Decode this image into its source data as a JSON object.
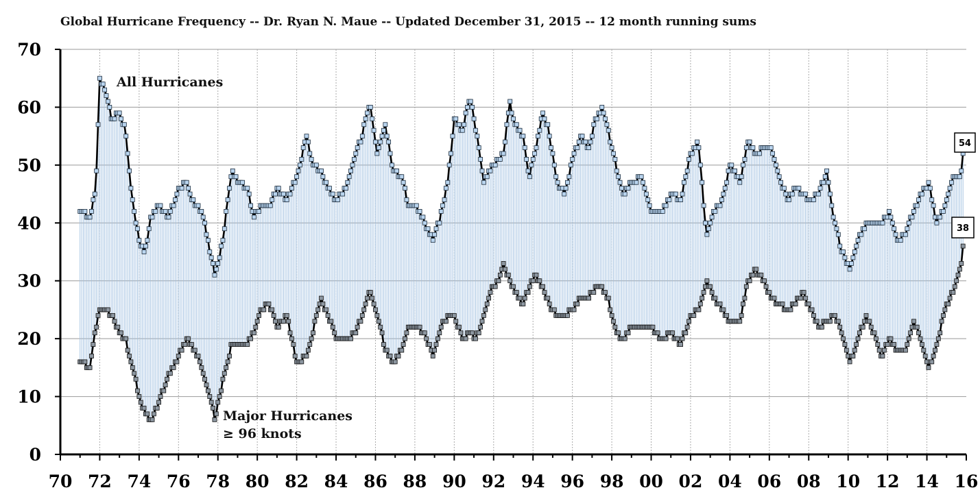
{
  "chart_data": {
    "type": "line",
    "title": "Global Hurricane Frequency -- Dr. Ryan N. Maue -- Updated December 31, 2015 -- 12 month running sums",
    "xlabel": "",
    "ylabel": "",
    "xlim": [
      1970,
      2016
    ],
    "ylim": [
      0,
      70
    ],
    "y_ticks": [
      "0",
      "10",
      "20",
      "30",
      "40",
      "50",
      "60",
      "70"
    ],
    "x_ticks": [
      "70",
      "72",
      "74",
      "76",
      "78",
      "80",
      "82",
      "84",
      "86",
      "88",
      "90",
      "92",
      "94",
      "96",
      "98",
      "00",
      "02",
      "04",
      "06",
      "08",
      "10",
      "12",
      "14",
      "16"
    ],
    "grid": "vertical and horizontal dotted",
    "colors": {
      "all_marker": "#b9d4ee",
      "major_marker": "#8c96a0",
      "line": "#000000",
      "fill_lines": "#9fbfe0"
    },
    "annotations": {
      "all_label": "All Hurricanes",
      "major_label_1": "Major Hurricanes",
      "major_label_2": "≥ 96 knots",
      "end_all": "54",
      "end_major": "38"
    },
    "series": [
      {
        "name": "All Hurricanes",
        "x": [
          1971.0,
          1971.5,
          1971.8,
          1972.0,
          1972.3,
          1972.6,
          1973.0,
          1973.3,
          1973.6,
          1974.0,
          1974.3,
          1974.6,
          1975.0,
          1975.5,
          1976.0,
          1976.4,
          1976.8,
          1977.2,
          1977.6,
          1977.85,
          1978.2,
          1978.7,
          1979.0,
          1979.5,
          1979.8,
          1980.2,
          1980.6,
          1981.0,
          1981.5,
          1982.0,
          1982.5,
          1982.8,
          1983.2,
          1983.6,
          1984.0,
          1984.5,
          1985.0,
          1985.3,
          1985.7,
          1986.1,
          1986.5,
          1986.9,
          1987.3,
          1987.7,
          1988.0,
          1988.5,
          1988.9,
          1989.3,
          1989.7,
          1990.0,
          1990.4,
          1990.8,
          1991.1,
          1991.5,
          1991.8,
          1992.2,
          1992.5,
          1992.8,
          1993.1,
          1993.5,
          1993.8,
          1994.1,
          1994.5,
          1994.8,
          1995.2,
          1995.6,
          1996.0,
          1996.4,
          1996.8,
          1997.2,
          1997.5,
          1997.8,
          1998.2,
          1998.6,
          1999.0,
          1999.5,
          2000.0,
          2000.5,
          2001.0,
          2001.5,
          2002.0,
          2002.4,
          2002.8,
          2003.2,
          2003.6,
          2004.0,
          2004.5,
          2004.9,
          2005.3,
          2005.7,
          2006.1,
          2006.5,
          2006.9,
          2007.3,
          2007.7,
          2008.1,
          2008.5,
          2008.9,
          2009.3,
          2009.7,
          2010.1,
          2010.5,
          2010.9,
          2011.3,
          2011.7,
          2012.1,
          2012.5,
          2012.9,
          2013.3,
          2013.7,
          2014.1,
          2014.5,
          2014.9,
          2015.3,
          2015.7,
          2015.9
        ],
        "values": [
          42,
          41,
          46,
          65,
          63,
          58,
          59,
          56,
          45,
          37,
          35,
          41,
          43,
          41,
          46,
          47,
          43,
          42,
          35,
          31,
          36,
          49,
          47,
          46,
          41,
          43,
          43,
          46,
          44,
          48,
          55,
          50,
          49,
          46,
          44,
          46,
          52,
          55,
          61,
          52,
          57,
          49,
          48,
          43,
          43,
          40,
          37,
          41,
          48,
          58,
          56,
          62,
          56,
          47,
          49,
          51,
          52,
          61,
          57,
          55,
          48,
          52,
          59,
          56,
          47,
          45,
          51,
          55,
          53,
          58,
          60,
          56,
          50,
          45,
          47,
          48,
          42,
          42,
          45,
          44,
          52,
          54,
          38,
          42,
          44,
          50,
          47,
          54,
          52,
          53,
          53,
          48,
          44,
          46,
          45,
          44,
          45,
          49,
          40,
          35,
          32,
          37,
          40,
          40,
          40,
          42,
          37,
          38,
          42,
          45,
          47,
          40,
          43,
          48,
          48,
          54
        ]
      },
      {
        "name": "Major Hurricanes ≥ 96 knots",
        "x": [
          1971.0,
          1971.5,
          1971.8,
          1972.0,
          1972.3,
          1972.6,
          1973.0,
          1973.3,
          1973.6,
          1974.0,
          1974.3,
          1974.6,
          1975.0,
          1975.5,
          1976.0,
          1976.4,
          1976.8,
          1977.2,
          1977.6,
          1977.85,
          1978.2,
          1978.7,
          1979.0,
          1979.5,
          1979.8,
          1980.2,
          1980.6,
          1981.0,
          1981.5,
          1982.0,
          1982.5,
          1982.8,
          1983.2,
          1983.6,
          1984.0,
          1984.5,
          1985.0,
          1985.3,
          1985.7,
          1986.1,
          1986.5,
          1986.9,
          1987.3,
          1987.7,
          1988.0,
          1988.5,
          1988.9,
          1989.3,
          1989.7,
          1990.0,
          1990.4,
          1990.8,
          1991.1,
          1991.5,
          1991.8,
          1992.2,
          1992.5,
          1992.8,
          1993.1,
          1993.5,
          1993.8,
          1994.1,
          1994.5,
          1994.8,
          1995.2,
          1995.6,
          1996.0,
          1996.4,
          1996.8,
          1997.2,
          1997.5,
          1997.8,
          1998.2,
          1998.6,
          1999.0,
          1999.5,
          2000.0,
          2000.5,
          2001.0,
          2001.5,
          2002.0,
          2002.4,
          2002.8,
          2003.2,
          2003.6,
          2004.0,
          2004.5,
          2004.9,
          2005.3,
          2005.7,
          2006.1,
          2006.5,
          2006.9,
          2007.3,
          2007.7,
          2008.1,
          2008.5,
          2008.9,
          2009.3,
          2009.7,
          2010.1,
          2010.5,
          2010.9,
          2011.3,
          2011.7,
          2012.1,
          2012.5,
          2012.9,
          2013.3,
          2013.7,
          2014.1,
          2014.5,
          2014.9,
          2015.3,
          2015.7,
          2015.9
        ],
        "values": [
          16,
          15,
          22,
          25,
          25,
          24,
          21,
          20,
          16,
          10,
          7,
          6,
          9,
          14,
          17,
          20,
          18,
          15,
          10,
          6,
          12,
          19,
          19,
          19,
          21,
          25,
          26,
          22,
          24,
          16,
          17,
          21,
          27,
          24,
          20,
          20,
          21,
          24,
          28,
          24,
          18,
          16,
          18,
          22,
          22,
          21,
          17,
          22,
          24,
          24,
          20,
          21,
          20,
          24,
          28,
          30,
          33,
          30,
          28,
          26,
          29,
          31,
          29,
          26,
          24,
          24,
          25,
          27,
          27,
          29,
          29,
          27,
          21,
          20,
          22,
          22,
          22,
          20,
          21,
          19,
          24,
          25,
          30,
          27,
          25,
          23,
          23,
          30,
          32,
          30,
          27,
          26,
          25,
          26,
          28,
          25,
          22,
          23,
          24,
          21,
          16,
          20,
          24,
          21,
          17,
          20,
          18,
          18,
          23,
          20,
          15,
          19,
          25,
          28,
          32,
          38
        ]
      }
    ]
  }
}
